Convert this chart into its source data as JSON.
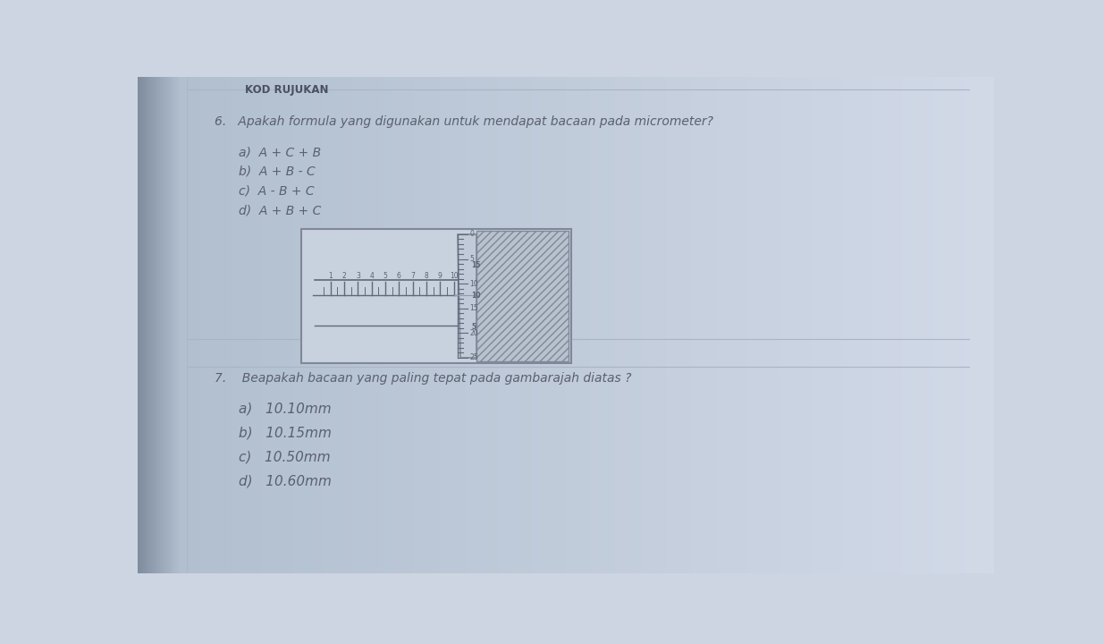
{
  "bg_gradient_left": "#b8c4d4",
  "bg_gradient_right": "#d0d8e8",
  "paper_color": "#cdd5e2",
  "left_dark": "#8090a8",
  "header_line_color": "#9099aa",
  "text_color": "#5a6070",
  "heading_color": "#4a5060",
  "title_top": "KOD RUJUKAN",
  "question6_text": "6.   Apakah formula yang digunakan untuk mendapat bacaan pada micrometer?",
  "q6_options": [
    "a)  A + C + B",
    "b)  A + B - C",
    "c)  A - B + C",
    "d)  A + B + C"
  ],
  "question7_text": "7.    Beapakah bacaan yang paling tepat pada gambarajah diatas ?",
  "q7_options": [
    "a)   10.10mm",
    "b)   10.15mm",
    "c)   10.50mm",
    "d)   10.60mm"
  ],
  "grid_line_color": "#aab4c4",
  "diagram_edge_color": "#808898",
  "diagram_face_color": "#c8d2de",
  "thimble_face_color": "#c0cad8",
  "hatch_color": "#909aa8"
}
